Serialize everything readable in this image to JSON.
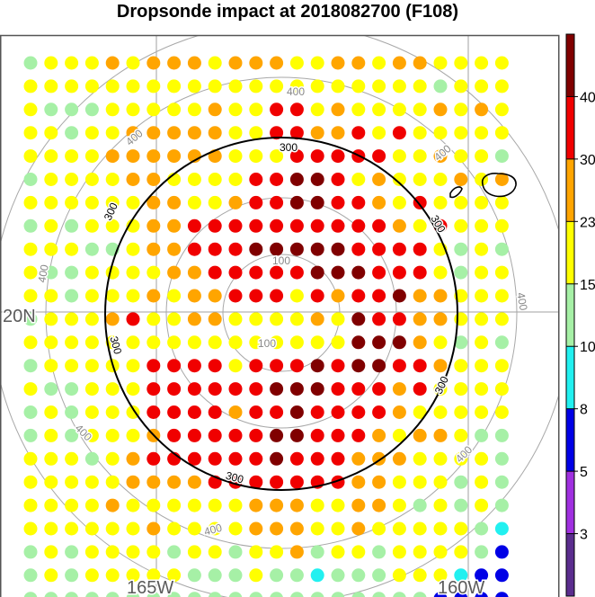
{
  "chart_data": {
    "type": "scatter",
    "title": "Dropsonde impact at 2018082700 (F108)",
    "longitude_labels": [
      "165W",
      "160W"
    ],
    "latitude_labels": [
      "20N"
    ],
    "range_ring_labels": [
      "100",
      "300",
      "400"
    ],
    "colorbar": {
      "tick_labels": [
        "3",
        "5",
        "8",
        "10",
        "15",
        "23",
        "30",
        "40"
      ],
      "bins": [
        {
          "range": "<3",
          "color": "#5b2d8e"
        },
        {
          "range": "3-5",
          "color": "#a030e0"
        },
        {
          "range": "5-8",
          "color": "#0000e6"
        },
        {
          "range": "8-10",
          "color": "#22f0f0"
        },
        {
          "range": "10-15",
          "color": "#a6f0a6"
        },
        {
          "range": "15-23",
          "color": "#ffff00"
        },
        {
          "range": "23-30",
          "color": "#ffa500"
        },
        {
          "range": "30-40",
          "color": "#f00000"
        },
        {
          "range": ">40",
          "color": "#800000"
        }
      ]
    },
    "category_colors": {
      "g": "#a6f0a6",
      "c": "#22f0f0",
      "b": "#0000e6",
      "y": "#ffff00",
      "o": "#ffa500",
      "r": "#f00000",
      "d": "#800000"
    },
    "grid_rows": [
      "g y y y o y o o o y o o o y y o o y o o y y y y",
      "y y y y y y y y y y y y y y y y y y y y g y y y",
      "y g g g y y y y y o y y r r y o y y y y o y o y",
      "y y g y y o o o o o y y r r o o r y r y y y y y",
      "y y y y o o o o o o y y y r r r r r y y o y y g",
      "g y y y y o o y y y y r r d d r y o y y y o y o",
      "y y y y y y o o y y o r r d d r r o y r y y y y",
      "g y g y y y o o r r r r r r r r r r o y r y y y",
      "y y y g g y o o r r r d d d d d r r r r y g y g",
      "y g g y y y y o o r r r r r d d d r r r y g y y",
      "y y g y y y o y o o r r r y r o r r d o o y y y",
      "g y y y o r y y o o y y y y o y d r r o o y y y",
      "y y y y y y y y y y y y y y y y d d d o y g y g",
      "g y y y y y r r r r y r r r d r d d r r o y y y",
      "y g g y y y r r r r r r d d d r r r o r y y y y",
      "g y g y y y r r r r o r r d r r r r o y y y y y",
      "g y g y y y o r r r r r d d r r r o y o o y g g",
      "y y y g y o r r r r r r d r r r o o o y y y y g",
      "y y y y y o o o o r r r r r r r o o y y y g y g",
      "y y y y o y y y y y y o o o y y o o y g y g y g",
      "y y y y y y o y y y y o o o y y o y y y y y g c",
      "g y g y y y y g y y g y y o g y y g y y y y g b",
      "g y g y y y y y g g g y g g c g g g y y y c b b",
      "g g g g g g g g g g g g g g g g g g g g b b b b"
    ]
  }
}
